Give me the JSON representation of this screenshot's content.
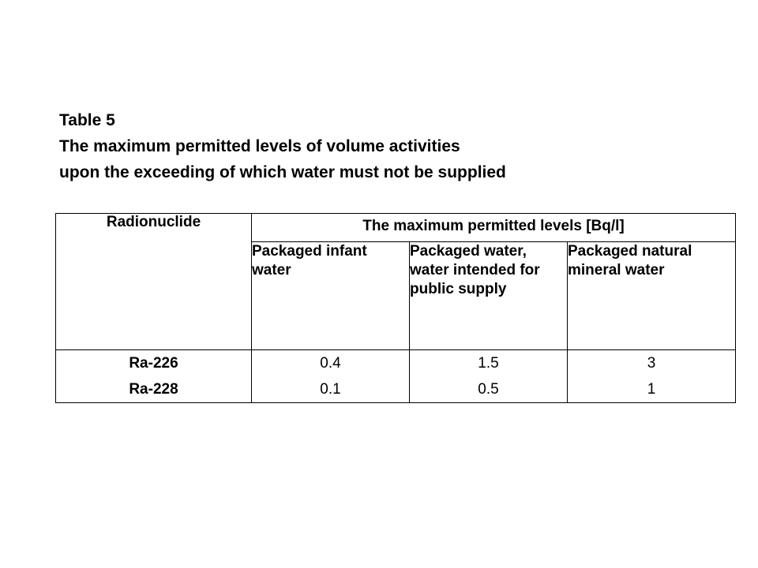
{
  "heading": {
    "line1": "Table 5",
    "line2": "The maximum permitted levels of volume activities",
    "line3": "upon the exceeding of  which water must not be supplied"
  },
  "table": {
    "radionuclide_header": "Radionuclide",
    "levels_header": "The maximum permitted levels [Bq/l]",
    "columns": [
      "Packaged infant water",
      "Packaged water, water intended for public supply",
      "Packaged natural mineral water"
    ],
    "rows": [
      {
        "nuclide": "Ra-226",
        "values": [
          "0.4",
          "1.5",
          "3"
        ]
      },
      {
        "nuclide": "Ra-228",
        "values": [
          "0.1",
          "0.5",
          "1"
        ]
      }
    ]
  }
}
